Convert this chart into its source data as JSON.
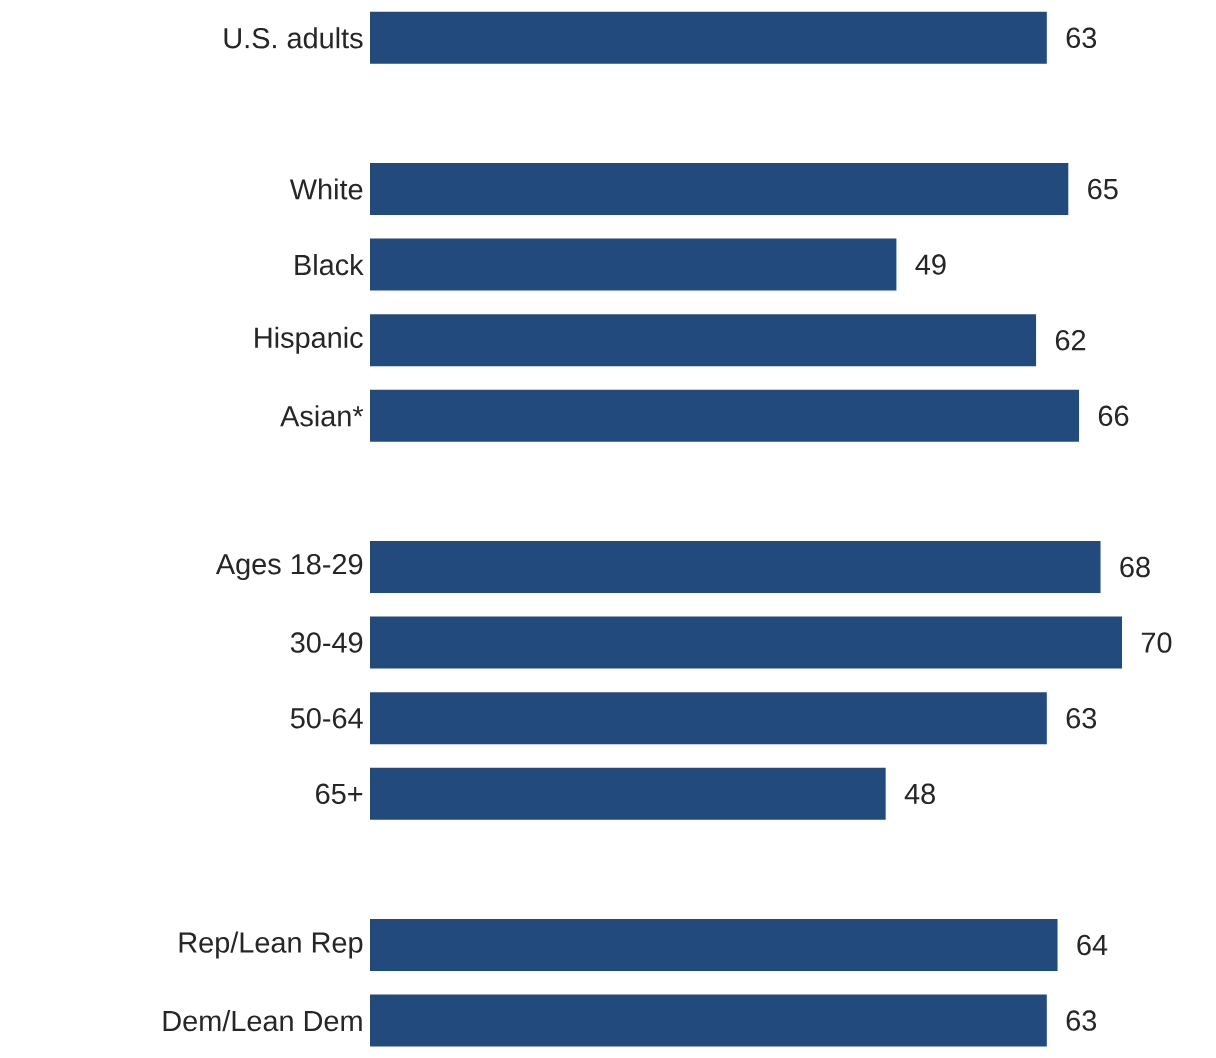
{
  "chart_data": {
    "type": "bar",
    "orientation": "horizontal",
    "categories": [
      "U.S. adults",
      null,
      "White",
      "Black",
      "Hispanic",
      "Asian*",
      null,
      "Ages 18-29",
      "30-49",
      "50-64",
      "65+",
      null,
      "Rep/Lean Rep",
      "Dem/Lean Dem"
    ],
    "values": [
      63,
      null,
      65,
      49,
      62,
      66,
      null,
      68,
      70,
      63,
      48,
      null,
      64,
      63
    ],
    "color": "#234a7c",
    "data_labels": true
  }
}
